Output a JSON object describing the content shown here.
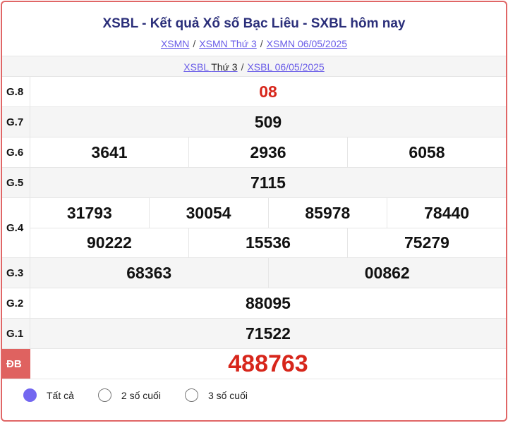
{
  "header": {
    "title": "XSBL - Kết quả Xổ số Bạc Liêu - SXBL hôm nay",
    "breadcrumbs": [
      "XSMN",
      "XSMN Thứ 3",
      "XSMN 06/05/2025"
    ],
    "sep": "/"
  },
  "subnav": {
    "link1": "XSBL",
    "link1_rest": "Thứ 3",
    "link2": "XSBL 06/05/2025"
  },
  "prizes": [
    {
      "label": "G.8",
      "lines": [
        [
          "08"
        ]
      ],
      "red": true
    },
    {
      "label": "G.7",
      "lines": [
        [
          "509"
        ]
      ]
    },
    {
      "label": "G.6",
      "lines": [
        [
          "3641",
          "2936",
          "6058"
        ]
      ]
    },
    {
      "label": "G.5",
      "lines": [
        [
          "7115"
        ]
      ]
    },
    {
      "label": "G.4",
      "lines": [
        [
          "31793",
          "30054",
          "85978",
          "78440"
        ],
        [
          "90222",
          "15536",
          "75279"
        ]
      ]
    },
    {
      "label": "G.3",
      "lines": [
        [
          "68363",
          "00862"
        ]
      ]
    },
    {
      "label": "G.2",
      "lines": [
        [
          "88095"
        ]
      ]
    },
    {
      "label": "G.1",
      "lines": [
        [
          "71522"
        ]
      ]
    },
    {
      "label": "ĐB",
      "lines": [
        [
          "488763"
        ]
      ],
      "red": true,
      "special": true
    }
  ],
  "filters": {
    "options": [
      "Tất cả",
      "2 số cuối",
      "3 số cuối"
    ],
    "selected": "Tất cả"
  },
  "colors": {
    "accent": "#7367f0",
    "red": "#d7261b",
    "border": "#e06666",
    "title": "#2b2f7a"
  }
}
